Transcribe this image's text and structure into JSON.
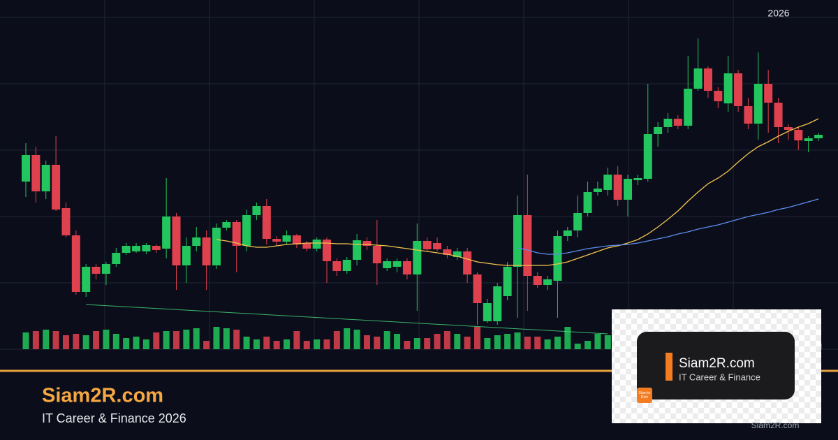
{
  "header": {
    "year": "2026"
  },
  "chart_data": {
    "type": "candlestick",
    "ylim": [
      0,
      500
    ],
    "yticks": [
      0,
      95,
      190,
      285,
      380,
      475
    ],
    "grid": true,
    "up_color": "#22c55e",
    "down_color": "#e0414f",
    "candles": [
      [
        240,
        295,
        218,
        278
      ],
      [
        278,
        290,
        210,
        226
      ],
      [
        226,
        270,
        215,
        264
      ],
      [
        264,
        305,
        198,
        200
      ],
      [
        202,
        210,
        160,
        163
      ],
      [
        163,
        170,
        78,
        82
      ],
      [
        82,
        122,
        75,
        118
      ],
      [
        118,
        122,
        100,
        108
      ],
      [
        108,
        125,
        92,
        122
      ],
      [
        122,
        145,
        118,
        138
      ],
      [
        138,
        152,
        135,
        148
      ],
      [
        140,
        152,
        138,
        148
      ],
      [
        140,
        152,
        136,
        149
      ],
      [
        148,
        150,
        138,
        142
      ],
      [
        144,
        245,
        130,
        190
      ],
      [
        190,
        195,
        85,
        120
      ],
      [
        120,
        160,
        95,
        148
      ],
      [
        148,
        175,
        140,
        160
      ],
      [
        160,
        170,
        85,
        120
      ],
      [
        120,
        180,
        115,
        174
      ],
      [
        174,
        185,
        170,
        182
      ],
      [
        182,
        185,
        110,
        148
      ],
      [
        148,
        200,
        140,
        192
      ],
      [
        192,
        210,
        185,
        205
      ],
      [
        205,
        215,
        150,
        158
      ],
      [
        158,
        162,
        148,
        154
      ],
      [
        154,
        170,
        150,
        163
      ],
      [
        163,
        165,
        145,
        150
      ],
      [
        152,
        155,
        140,
        144
      ],
      [
        144,
        160,
        140,
        157
      ],
      [
        157,
        160,
        95,
        126
      ],
      [
        126,
        130,
        105,
        112
      ],
      [
        112,
        132,
        108,
        128
      ],
      [
        128,
        165,
        120,
        156
      ],
      [
        155,
        160,
        142,
        148
      ],
      [
        148,
        185,
        92,
        123
      ],
      [
        116,
        130,
        112,
        126
      ],
      [
        118,
        130,
        110,
        126
      ],
      [
        126,
        130,
        100,
        107
      ],
      [
        107,
        180,
        55,
        155
      ],
      [
        155,
        160,
        140,
        143
      ],
      [
        152,
        160,
        140,
        143
      ],
      [
        143,
        148,
        130,
        135
      ],
      [
        132,
        145,
        128,
        140
      ],
      [
        140,
        145,
        95,
        107
      ],
      [
        107,
        110,
        35,
        66
      ],
      [
        40,
        72,
        38,
        66
      ],
      [
        40,
        95,
        35,
        90
      ],
      [
        76,
        125,
        70,
        118
      ],
      [
        118,
        220,
        45,
        192
      ],
      [
        192,
        250,
        55,
        105
      ],
      [
        105,
        110,
        88,
        92
      ],
      [
        92,
        105,
        85,
        100
      ],
      [
        98,
        170,
        45,
        162
      ],
      [
        162,
        175,
        155,
        170
      ],
      [
        170,
        220,
        160,
        195
      ],
      [
        195,
        240,
        190,
        225
      ],
      [
        225,
        240,
        220,
        230
      ],
      [
        228,
        260,
        220,
        250
      ],
      [
        250,
        262,
        205,
        214
      ],
      [
        214,
        250,
        190,
        244
      ],
      [
        242,
        250,
        235,
        245
      ],
      [
        244,
        380,
        240,
        308
      ],
      [
        308,
        325,
        290,
        318
      ],
      [
        318,
        338,
        310,
        330
      ],
      [
        330,
        335,
        315,
        320
      ],
      [
        320,
        420,
        315,
        373
      ],
      [
        373,
        445,
        370,
        402
      ],
      [
        402,
        405,
        360,
        370
      ],
      [
        370,
        375,
        345,
        355
      ],
      [
        352,
        420,
        340,
        395
      ],
      [
        395,
        400,
        340,
        348
      ],
      [
        348,
        360,
        315,
        323
      ],
      [
        323,
        425,
        300,
        380
      ],
      [
        380,
        400,
        310,
        353
      ],
      [
        353,
        360,
        295,
        318
      ],
      [
        318,
        322,
        300,
        314
      ],
      [
        314,
        318,
        285,
        299
      ],
      [
        298,
        305,
        282,
        302
      ],
      [
        302,
        310,
        298,
        307
      ]
    ],
    "volume_lim": [
      0,
      100
    ],
    "volumes": [
      24,
      26,
      28,
      26,
      20,
      22,
      20,
      26,
      28,
      22,
      16,
      18,
      14,
      24,
      26,
      26,
      28,
      30,
      12,
      32,
      30,
      28,
      18,
      14,
      18,
      12,
      14,
      26,
      12,
      14,
      14,
      26,
      30,
      28,
      20,
      18,
      26,
      22,
      12,
      16,
      16,
      22,
      26,
      22,
      18,
      32,
      16,
      20,
      22,
      24,
      18,
      18,
      14,
      18,
      32,
      8,
      12,
      22,
      20,
      12,
      14,
      18,
      20,
      18,
      16,
      20,
      22,
      20,
      22,
      18,
      16,
      14,
      18,
      20,
      20,
      16,
      14,
      12,
      10,
      8
    ],
    "series": [
      {
        "color": "#f5c44e",
        "values": [
          null,
          null,
          null,
          null,
          null,
          null,
          null,
          null,
          null,
          null,
          null,
          null,
          null,
          null,
          null,
          null,
          null,
          null,
          null,
          157,
          155,
          152,
          148,
          146,
          146,
          148,
          150,
          151,
          152,
          152,
          152,
          151,
          151,
          150,
          150,
          149,
          148,
          146,
          144,
          142,
          140,
          138,
          136,
          133,
          129,
          125,
          123,
          121,
          120,
          120,
          120,
          120,
          120,
          122,
          125,
          130,
          135,
          140,
          145,
          148,
          152,
          157,
          165,
          175,
          186,
          198,
          212,
          225,
          237,
          245,
          255,
          268,
          280,
          290,
          297,
          305,
          312,
          318,
          323,
          330
        ]
      },
      {
        "color": "#5b8def",
        "values": [
          null,
          null,
          null,
          null,
          null,
          null,
          null,
          null,
          null,
          null,
          null,
          null,
          null,
          null,
          null,
          null,
          null,
          null,
          null,
          null,
          null,
          null,
          null,
          null,
          null,
          null,
          null,
          null,
          null,
          null,
          null,
          null,
          null,
          null,
          null,
          null,
          null,
          null,
          null,
          null,
          null,
          null,
          null,
          null,
          null,
          null,
          null,
          null,
          null,
          145,
          142,
          138,
          136,
          136,
          138,
          141,
          144,
          146,
          148,
          149,
          150,
          152,
          155,
          158,
          161,
          165,
          168,
          172,
          175,
          178,
          182,
          186,
          190,
          193,
          196,
          200,
          203,
          207,
          211,
          215
        ]
      }
    ],
    "trendline": {
      "color": "#4ade80",
      "x": [
        6,
        58
      ],
      "values": [
        64,
        22
      ]
    }
  },
  "footer": {
    "title": "Siam2R.com",
    "subtitle": "IT Career & Finance 2026"
  },
  "logo": {
    "title": "Siam2R.com",
    "subtitle": "IT Career & Finance",
    "badge": "Siam to Rich",
    "caption": "Siam2R.com"
  }
}
